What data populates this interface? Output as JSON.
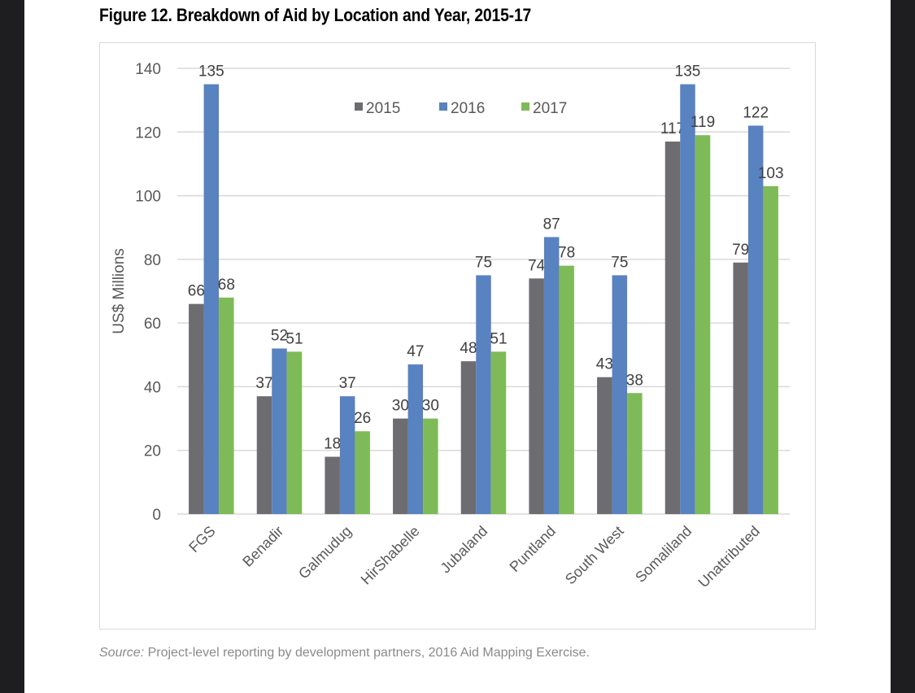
{
  "chart_data": {
    "type": "bar",
    "title": "Figure 12. Breakdown of Aid by Location and Year, 2015-17",
    "xlabel": "",
    "ylabel": "US$ Millions",
    "ylim": [
      0,
      140
    ],
    "yticks": [
      0,
      20,
      40,
      60,
      80,
      100,
      120,
      140
    ],
    "grid": true,
    "legend_position": "top-center",
    "categories": [
      "FGS",
      "Benadir",
      "Galmudug",
      "HirShabelle",
      "Jubaland",
      "Puntland",
      "South West",
      "Somaliland",
      "Unattributed"
    ],
    "series": [
      {
        "name": "2015",
        "color": "#6d6c70",
        "values": [
          66,
          37,
          18,
          30,
          48,
          74,
          43,
          117,
          79
        ]
      },
      {
        "name": "2016",
        "color": "#5882c0",
        "values": [
          135,
          52,
          37,
          47,
          75,
          87,
          75,
          135,
          122
        ]
      },
      {
        "name": "2017",
        "color": "#7fba58",
        "values": [
          68,
          51,
          26,
          30,
          51,
          78,
          38,
          119,
          103
        ]
      }
    ]
  },
  "source": {
    "label": "Source:",
    "text": " Project-level reporting by development partners, 2016 Aid Mapping Exercise."
  }
}
